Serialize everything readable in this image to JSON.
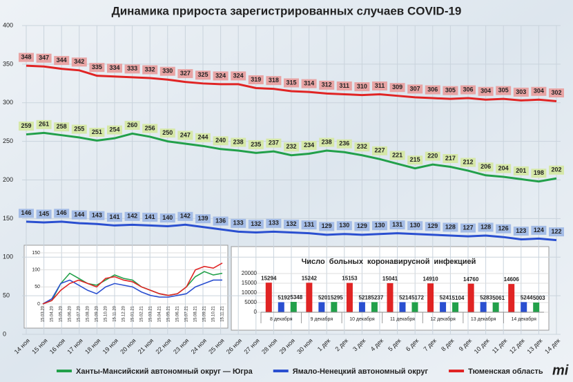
{
  "chart_data": [
    {
      "type": "line",
      "title": "Динамика прироста зарегистрированных случаев COVID-19",
      "categories": [
        "14 ноя",
        "15 ноя",
        "16 ноя",
        "17 ноя",
        "18 ноя",
        "19 ноя",
        "20 ноя",
        "21 ноя",
        "22 ноя",
        "23 ноя",
        "24 ноя",
        "25 ноя",
        "26 ноя",
        "27 ноя",
        "28 ноя",
        "29 ноя",
        "30 ноя",
        "1 дек",
        "2 дек",
        "3 дек",
        "4 дек",
        "5 дек",
        "6 дек",
        "7 дек",
        "8 дек",
        "9 дек",
        "10 дек",
        "11 дек",
        "12 дек",
        "13 дек",
        "14 дек"
      ],
      "series": [
        {
          "name": "Ханты-Мансийский автономный округ — Югра",
          "color": "#22a04a",
          "label_color": "#d6e8a8",
          "values": [
            259,
            261,
            258,
            255,
            251,
            254,
            260,
            256,
            250,
            247,
            244,
            240,
            238,
            235,
            237,
            232,
            234,
            238,
            236,
            232,
            227,
            221,
            215,
            220,
            217,
            212,
            206,
            204,
            201,
            198,
            202
          ]
        },
        {
          "name": "Ямало-Ненецкий автономный округ",
          "color": "#2a4fd0",
          "label_color": "#a4bce6",
          "values": [
            146,
            145,
            146,
            144,
            143,
            141,
            142,
            141,
            140,
            142,
            139,
            136,
            133,
            132,
            133,
            132,
            131,
            129,
            130,
            129,
            130,
            131,
            130,
            129,
            128,
            127,
            128,
            126,
            123,
            124,
            122
          ]
        },
        {
          "name": "Тюменская область",
          "color": "#e02424",
          "label_color": "#e8a4a4",
          "values": [
            348,
            347,
            344,
            342,
            335,
            334,
            333,
            332,
            330,
            327,
            325,
            324,
            324,
            319,
            318,
            315,
            314,
            312,
            311,
            310,
            311,
            309,
            307,
            306,
            305,
            306,
            304,
            305,
            303,
            304,
            302
          ]
        }
      ],
      "ylim": [
        0,
        400
      ],
      "yticks": [
        0,
        50,
        100,
        150,
        200,
        250,
        300,
        350,
        400
      ],
      "grid": true,
      "legend": "bottom"
    },
    {
      "type": "line",
      "categories": [
        "15.03.20",
        "15.04.20",
        "15.05.20",
        "15.06.20",
        "15.07.20",
        "15.08.20",
        "15.09.20",
        "15.10.20",
        "15.11.20",
        "15.12.20",
        "15.01.21",
        "15.02.21",
        "15.03.21",
        "15.04.21",
        "15.05.21",
        "15.06.21",
        "15.07.21",
        "15.08.21",
        "15.09.21",
        "15.10.21",
        "15.11.21"
      ],
      "series": [
        {
          "color": "#22a04a",
          "values": [
            0,
            10,
            60,
            90,
            75,
            60,
            55,
            70,
            85,
            75,
            70,
            50,
            40,
            30,
            25,
            30,
            50,
            80,
            95,
            85,
            90
          ]
        },
        {
          "color": "#2a4fd0",
          "values": [
            0,
            15,
            60,
            70,
            55,
            40,
            30,
            50,
            60,
            55,
            50,
            35,
            25,
            20,
            20,
            25,
            30,
            50,
            60,
            70,
            70
          ]
        },
        {
          "color": "#e02424",
          "values": [
            0,
            10,
            40,
            60,
            70,
            60,
            50,
            75,
            80,
            70,
            65,
            50,
            40,
            30,
            25,
            30,
            50,
            100,
            110,
            105,
            120
          ]
        }
      ],
      "ylim": [
        0,
        150
      ],
      "yticks": [
        0,
        50,
        100,
        150
      ],
      "grid": true
    },
    {
      "type": "bar",
      "title": "Число больных коронавирусной инфекцией",
      "categories": [
        "8 декабря",
        "9 декабря",
        "10 декабря",
        "11 декабря",
        "12 декабря",
        "13 декабря",
        "14 декабря"
      ],
      "series": [
        {
          "color": "#e02424",
          "values": [
            15294,
            15242,
            15153,
            15041,
            14910,
            14760,
            14606
          ]
        },
        {
          "color": "#2a4fd0",
          "values": [
            5192,
            5201,
            5218,
            5214,
            5241,
            5283,
            5244
          ]
        },
        {
          "color": "#22a04a",
          "values": [
            5348,
            5295,
            5237,
            5172,
            5104,
            5061,
            5003
          ]
        }
      ],
      "ylim": [
        0,
        20000
      ],
      "yticks": [
        0,
        5000,
        10000,
        15000,
        20000
      ],
      "grid": true
    }
  ],
  "logo": "mi"
}
